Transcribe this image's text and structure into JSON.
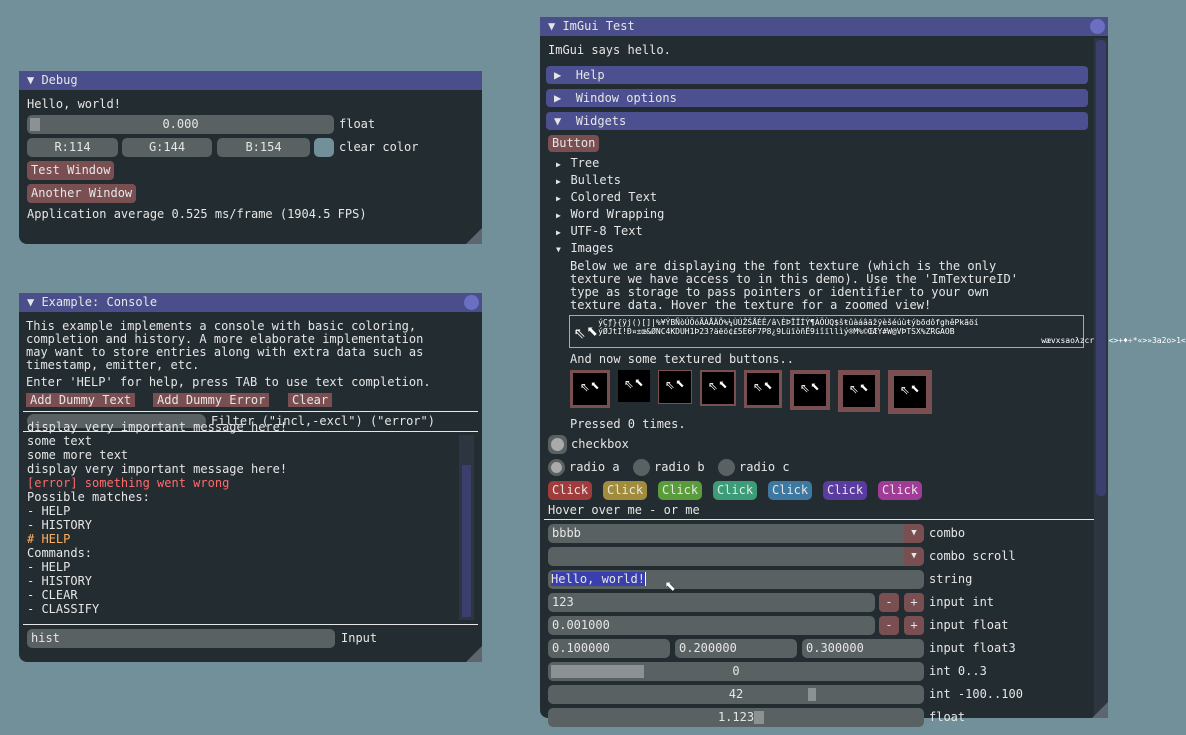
{
  "colors": {
    "background": "#72909a",
    "window": "#232c31",
    "title": "#4a4f8c",
    "button": "#7a4f52",
    "frame": "#5a6163",
    "error": "#ff6b6b",
    "highlight": "#ffb060"
  },
  "debug": {
    "title": "Debug",
    "hello": "Hello, world!",
    "float_value": "0.000",
    "float_fraction": 0.0,
    "float_label": "float",
    "r": "R:114",
    "g": "G:144",
    "b": "B:154",
    "clear_color_label": "clear color",
    "clear_color": "#72909a",
    "test_window": "Test Window",
    "another_window": "Another Window",
    "fps": "Application average 0.525 ms/frame (1904.5 FPS)"
  },
  "console": {
    "title": "Example: Console",
    "desc": [
      "This example implements a console with basic coloring,",
      "completion and history. A more elaborate implementation",
      "may want to store entries along with extra data such as",
      "timestamp, emitter, etc."
    ],
    "help": "Enter 'HELP' for help, press TAB to use text completion.",
    "add_text": "Add Dummy Text",
    "add_error": "Add Dummy Error",
    "clear": "Clear",
    "filter_value": "",
    "filter_label": "Filter (\"incl,-excl\") (\"error\")",
    "log": [
      {
        "text": "display very important message here!",
        "type": "normal"
      },
      {
        "text": "some text",
        "type": "normal"
      },
      {
        "text": "some more text",
        "type": "normal"
      },
      {
        "text": "display very important message here!",
        "type": "normal"
      },
      {
        "text": "[error] something went wrong",
        "type": "error"
      },
      {
        "text": "Possible matches:",
        "type": "normal"
      },
      {
        "text": "- HELP",
        "type": "normal"
      },
      {
        "text": "- HISTORY",
        "type": "normal"
      },
      {
        "text": "# HELP",
        "type": "command"
      },
      {
        "text": "Commands:",
        "type": "normal"
      },
      {
        "text": "- HELP",
        "type": "normal"
      },
      {
        "text": "- HISTORY",
        "type": "normal"
      },
      {
        "text": "- CLEAR",
        "type": "normal"
      },
      {
        "text": "- CLASSIFY",
        "type": "normal"
      }
    ],
    "input_value": "hist",
    "input_label": "Input"
  },
  "test": {
    "title": "ImGui Test",
    "hello": "ImGui says hello.",
    "headers": [
      "Help",
      "Window options",
      "Widgets"
    ],
    "button": "Button",
    "tree": [
      "Tree",
      "Bullets",
      "Colored Text",
      "Word Wrapping",
      "UTF-8 Text",
      "Images"
    ],
    "images_desc": [
      "Below we are displaying the font texture (which is the only",
      "texture we have access to in this demo). Use the 'ImTextureID'",
      "type as storage to pass pointers or identifier to your own",
      "texture data. Hover the texture for a zoomed view!"
    ],
    "textured_label": "And now some textured buttons..",
    "pressed": "Pressed 0 times.",
    "checkbox": "checkbox",
    "radios": [
      "radio a",
      "radio b",
      "radio c"
    ],
    "click": "Click",
    "click_colors": [
      "#a03c3c",
      "#a08c3c",
      "#5a9c3c",
      "#3c9c78",
      "#3c78a0",
      "#5a3ca0",
      "#a03c96"
    ],
    "hover": "Hover over me - or me",
    "combo_value": "bbbb",
    "combo_label": "combo",
    "combo_scroll_value": "",
    "combo_scroll_label": "combo scroll",
    "string_value": "Hello, world!",
    "string_label": "string",
    "int_value": "123",
    "int_label": "input int",
    "minus": "-",
    "plus": "+",
    "float_value": "0.001000",
    "float_label": "input float",
    "float3": [
      "0.100000",
      "0.200000",
      "0.300000"
    ],
    "float3_label": "input float3",
    "int03_value": "0",
    "int03_label": "int 0..3",
    "int100_value": "42",
    "int100_label": "int -100..100",
    "slider_float_value": "1.123",
    "slider_float_label": "float"
  }
}
